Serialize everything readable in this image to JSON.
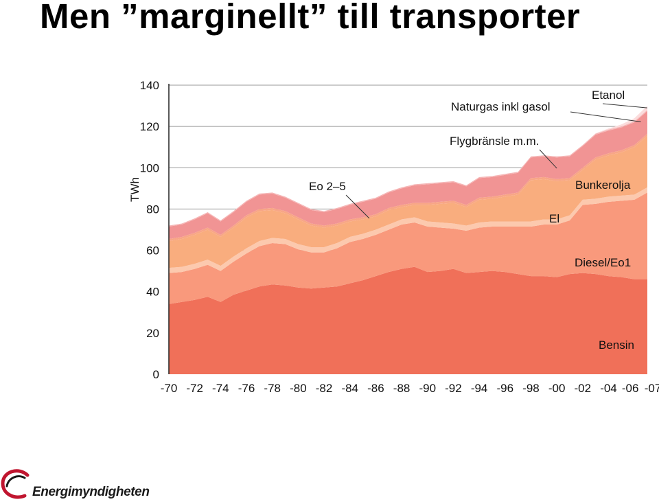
{
  "slide": {
    "title": "Men ”marginellt” till transporter"
  },
  "logo": {
    "text": "Energimyndigheten",
    "icon": "energimyndigheten-swirl-logo",
    "colors": {
      "swirl": "#c0152f",
      "dark": "#1a1a1a"
    }
  },
  "chart_data": {
    "type": "area",
    "stacked": true,
    "ylabel": "TWh",
    "ylim": [
      0,
      140
    ],
    "yticks": [
      0,
      20,
      40,
      60,
      80,
      100,
      120,
      140
    ],
    "xlim": [
      1970,
      2007
    ],
    "xtick_values": [
      1970,
      1972,
      1974,
      1976,
      1978,
      1980,
      1982,
      1984,
      1986,
      1988,
      1990,
      1992,
      1994,
      1996,
      1998,
      2000,
      2002,
      2004,
      2006,
      2007
    ],
    "xtick_labels": [
      "-70",
      "-72",
      "-74",
      "-76",
      "-78",
      "-80",
      "-82",
      "-84",
      "-86",
      "-88",
      "-90",
      "-92",
      "-94",
      "-96",
      "-98",
      "-00",
      "-02",
      "-04",
      "-06",
      "-07"
    ],
    "grid": "horizontal",
    "x": [
      1970,
      1971,
      1972,
      1973,
      1974,
      1975,
      1976,
      1977,
      1978,
      1979,
      1980,
      1981,
      1982,
      1983,
      1984,
      1985,
      1986,
      1987,
      1988,
      1989,
      1990,
      1991,
      1992,
      1993,
      1994,
      1995,
      1996,
      1997,
      1998,
      1999,
      2000,
      2001,
      2002,
      2003,
      2004,
      2005,
      2006,
      2007
    ],
    "series": [
      {
        "name": "Bensin",
        "color": "#f07059",
        "values": [
          34,
          35,
          36,
          37.5,
          35,
          38.5,
          40.5,
          42.5,
          43.5,
          43,
          42,
          41.5,
          42,
          42.5,
          44,
          45.5,
          47.5,
          49.5,
          51,
          52,
          49.5,
          50,
          51,
          49,
          49.5,
          50,
          49.5,
          48.5,
          47.5,
          47.5,
          47,
          48.5,
          49,
          48.5,
          47.5,
          47,
          46,
          46
        ]
      },
      {
        "name": "Diesel/Eo1",
        "color": "#f9997c",
        "values": [
          15,
          14.5,
          15,
          15.5,
          15,
          16,
          18,
          19.5,
          20,
          20,
          18.5,
          17.5,
          17,
          18.5,
          20,
          20,
          20,
          20.5,
          21.5,
          21.5,
          22,
          21,
          19.5,
          20.5,
          21.5,
          21.5,
          22,
          23,
          24,
          25,
          25.5,
          26,
          33,
          34,
          36,
          37,
          38.5,
          42
        ]
      },
      {
        "name": "El",
        "color": "#fcc9ae",
        "values": [
          2.5,
          2.5,
          2.5,
          2.5,
          2.5,
          2.5,
          2.5,
          2.5,
          2.5,
          2.5,
          2.5,
          2.5,
          2.5,
          2.5,
          2.5,
          2.5,
          2.5,
          2.5,
          2.5,
          2.5,
          2.5,
          2.5,
          2.5,
          2.5,
          2.5,
          2.5,
          2.5,
          2.5,
          2.5,
          2.5,
          2.5,
          2.5,
          2.5,
          2.5,
          2.5,
          2.5,
          2.5,
          2.5
        ]
      },
      {
        "name": "Bunkerolja",
        "color": "#f9ad7e",
        "values": [
          13,
          13.5,
          14,
          14.5,
          14,
          14,
          15,
          14.5,
          13.5,
          12.5,
          12,
          10.5,
          9.5,
          8.5,
          7.5,
          7,
          6.5,
          7,
          6,
          6,
          8,
          9,
          10,
          9,
          11,
          11,
          12,
          13,
          20,
          19.5,
          18.5,
          17,
          14.5,
          19,
          20,
          21,
          23,
          25
        ]
      },
      {
        "name": "Eo 2–5",
        "color": "#f8a686",
        "values": [
          1,
          1,
          1,
          1,
          1,
          1,
          1,
          1,
          1,
          1,
          1,
          1,
          1,
          1,
          1,
          1,
          1,
          1,
          1,
          1,
          1,
          1,
          1,
          1,
          1,
          1,
          1,
          1,
          1,
          1,
          1,
          1,
          1,
          1,
          1,
          1,
          1,
          1
        ]
      },
      {
        "name": "Flygbränsle m.m.",
        "color": "#f19494",
        "values": [
          6,
          6,
          6.5,
          7,
          6.5,
          6.5,
          6.5,
          7,
          7,
          6.5,
          6.5,
          6.5,
          6.5,
          7,
          7,
          7.5,
          7.5,
          7.5,
          8,
          8.5,
          9,
          9,
          9,
          9,
          9.5,
          9.5,
          9.5,
          9.5,
          10,
          10,
          10.5,
          10.5,
          10.5,
          11,
          11,
          11,
          11,
          11
        ]
      },
      {
        "name": "Naturgas inkl gasol",
        "color": "#f5b5b5",
        "values": [
          0.5,
          0.5,
          0.5,
          0.5,
          0.5,
          0.5,
          0.5,
          0.5,
          0.5,
          0.5,
          0.5,
          0.5,
          0.5,
          0.5,
          0.5,
          0.5,
          0.5,
          0.5,
          0.5,
          0.5,
          0.5,
          0.5,
          0.5,
          0.5,
          0.5,
          0.5,
          0.5,
          0.5,
          0.5,
          0.5,
          0.5,
          0.5,
          0.5,
          0.5,
          0.5,
          0.5,
          0.5,
          0.5
        ]
      },
      {
        "name": "Etanol",
        "color": "#fbdcdc",
        "values": [
          0,
          0,
          0,
          0,
          0,
          0,
          0,
          0,
          0,
          0,
          0,
          0,
          0,
          0,
          0,
          0,
          0,
          0,
          0,
          0,
          0,
          0,
          0,
          0,
          0,
          0,
          0,
          0,
          0,
          0,
          0,
          0,
          0,
          0.2,
          0.5,
          1,
          1.5,
          2
        ]
      }
    ],
    "annotations": [
      {
        "text": "Naturgas inkl gasol",
        "series": "Naturgas inkl gasol",
        "x": 2006.5
      },
      {
        "text": "Etanol",
        "series": "Etanol",
        "x": 2007
      },
      {
        "text": "Flygbränsle m.m.",
        "series": "Flygbränsle m.m.",
        "x": 2000
      },
      {
        "text": "Eo 2–5",
        "series": "Eo 2–5",
        "x": 1985.5
      },
      {
        "text": "Bunkerolja",
        "series": "Bunkerolja"
      },
      {
        "text": "El",
        "series": "El"
      },
      {
        "text": "Diesel/Eo1",
        "series": "Diesel/Eo1"
      },
      {
        "text": "Bensin",
        "series": "Bensin"
      }
    ]
  }
}
